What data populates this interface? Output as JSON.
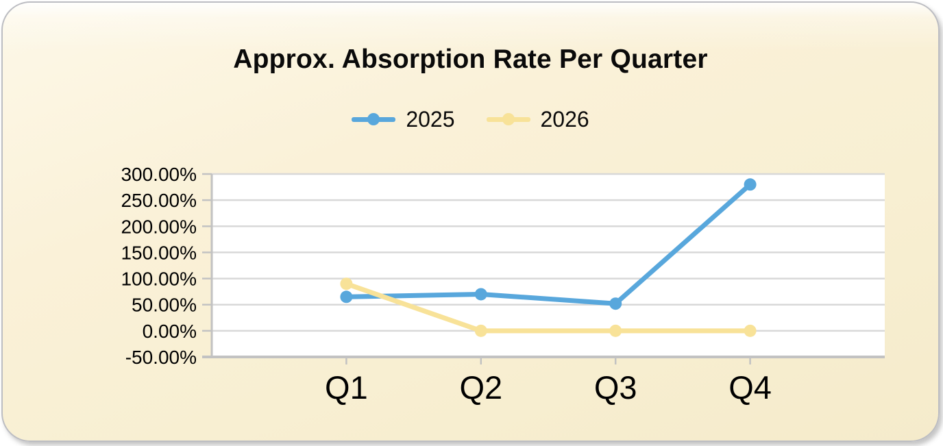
{
  "chart_data": {
    "type": "line",
    "title": "Approx. Absorption Rate Per Quarter",
    "categories": [
      "Q1",
      "Q2",
      "Q3",
      "Q4"
    ],
    "series": [
      {
        "name": "2025",
        "color": "#58a7dc",
        "values": [
          65,
          70,
          52,
          280
        ]
      },
      {
        "name": "2026",
        "color": "#f8e298",
        "values": [
          90,
          0,
          0,
          0
        ]
      }
    ],
    "y_ticks": [
      {
        "label": "300.00%",
        "value": 300
      },
      {
        "label": "250.00%",
        "value": 250
      },
      {
        "label": "200.00%",
        "value": 200
      },
      {
        "label": "150.00%",
        "value": 150
      },
      {
        "label": "100.00%",
        "value": 100
      },
      {
        "label": "50.00%",
        "value": 50
      },
      {
        "label": "0.00%",
        "value": 0
      },
      {
        "label": "-50.00%",
        "value": -50
      }
    ],
    "ylim": [
      -50,
      300
    ],
    "xlabel": "",
    "ylabel": "",
    "grid": true,
    "legend_position": "top",
    "colors": {
      "plot_bg": "#ffffff",
      "gridline": "#d8d8d8",
      "axis": "#c2c2c2",
      "card_bg": "#f8efd2",
      "text": "#000000"
    }
  }
}
